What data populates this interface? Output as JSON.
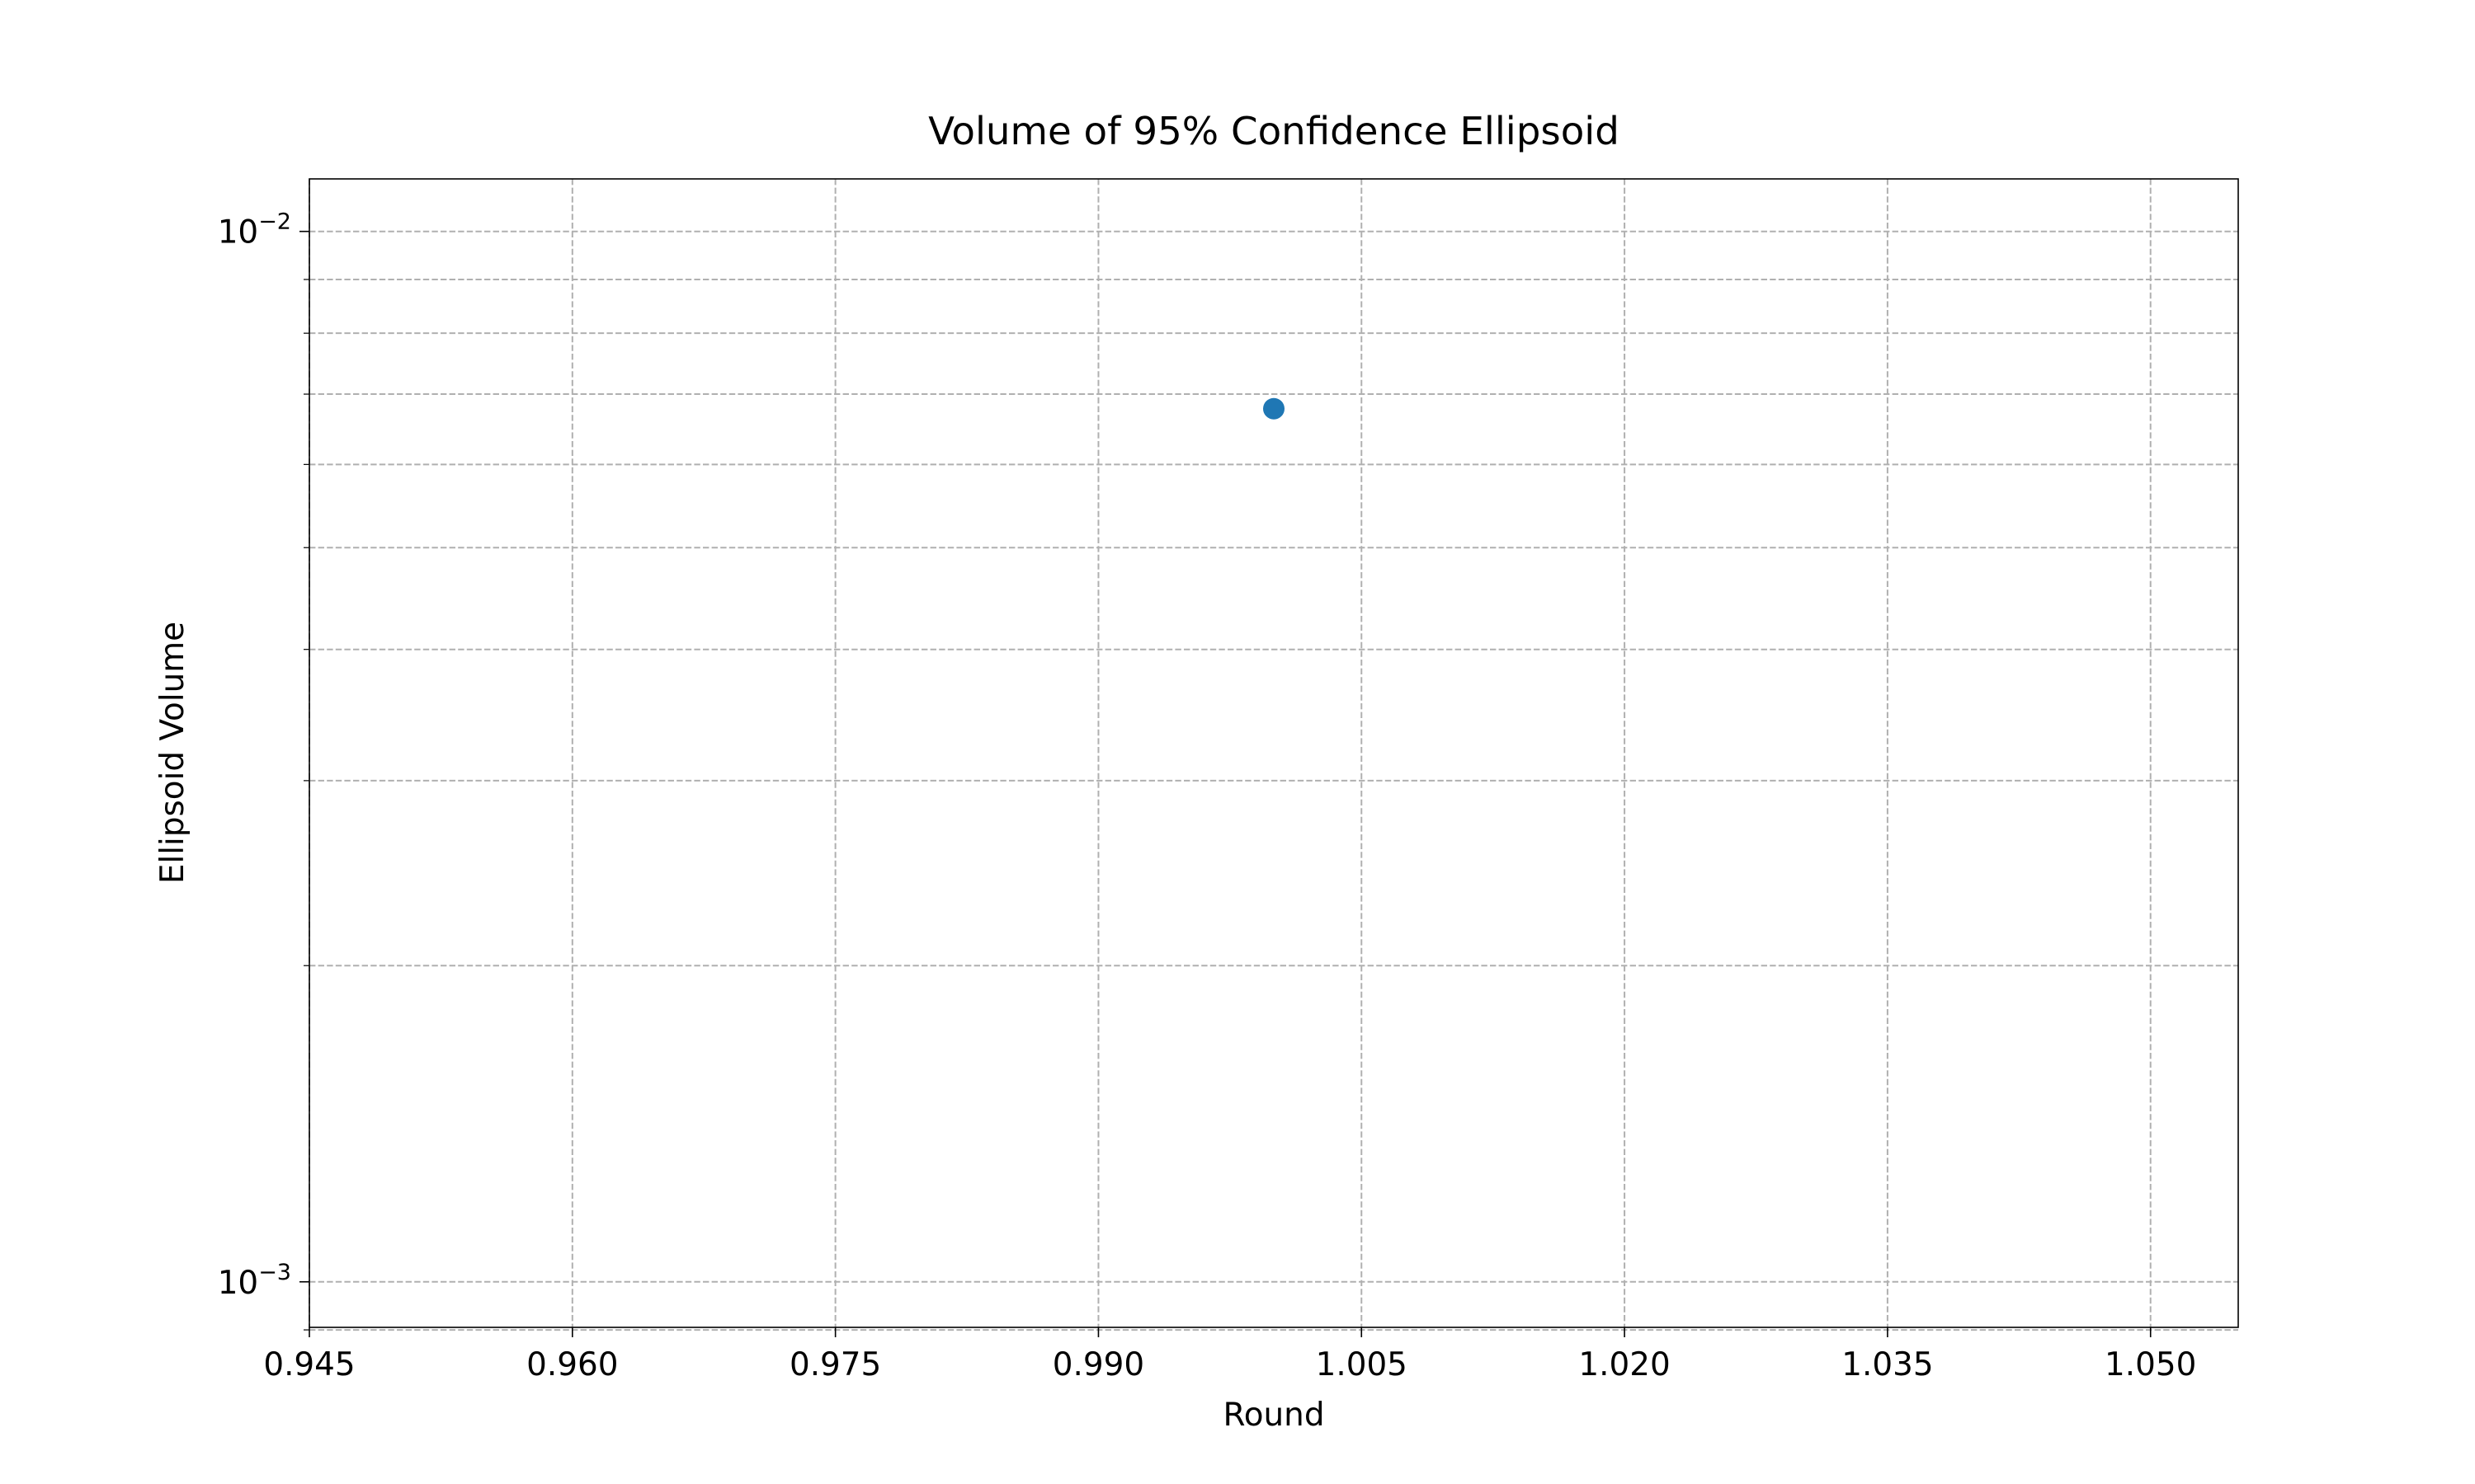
{
  "chart_data": {
    "type": "scatter",
    "title": "Volume of 95% Confidence Ellipsoid",
    "xlabel": "Round",
    "ylabel": "Ellipsoid Volume",
    "xlim": [
      0.945,
      1.055
    ],
    "ylim": [
      0.000905,
      0.01122
    ],
    "yscale": "log",
    "grid": true,
    "grid_style": "dashed",
    "x_ticks": [
      {
        "value": 0.945,
        "label": "0.945"
      },
      {
        "value": 0.96,
        "label": "0.960"
      },
      {
        "value": 0.975,
        "label": "0.975"
      },
      {
        "value": 0.99,
        "label": "0.990"
      },
      {
        "value": 1.005,
        "label": "1.005"
      },
      {
        "value": 1.02,
        "label": "1.020"
      },
      {
        "value": 1.035,
        "label": "1.035"
      },
      {
        "value": 1.05,
        "label": "1.050"
      }
    ],
    "y_major_ticks": [
      {
        "value": 0.01,
        "base": "10",
        "exponent": "−2"
      },
      {
        "value": 0.001,
        "base": "10",
        "exponent": "−3"
      }
    ],
    "y_minor_ticks": [
      0.0009,
      0.002,
      0.003,
      0.004,
      0.005,
      0.006,
      0.007,
      0.008,
      0.009
    ],
    "series": [
      {
        "color": "#1f77b4",
        "points": [
          {
            "x": 1.0,
            "y": 0.00678
          }
        ]
      }
    ]
  }
}
